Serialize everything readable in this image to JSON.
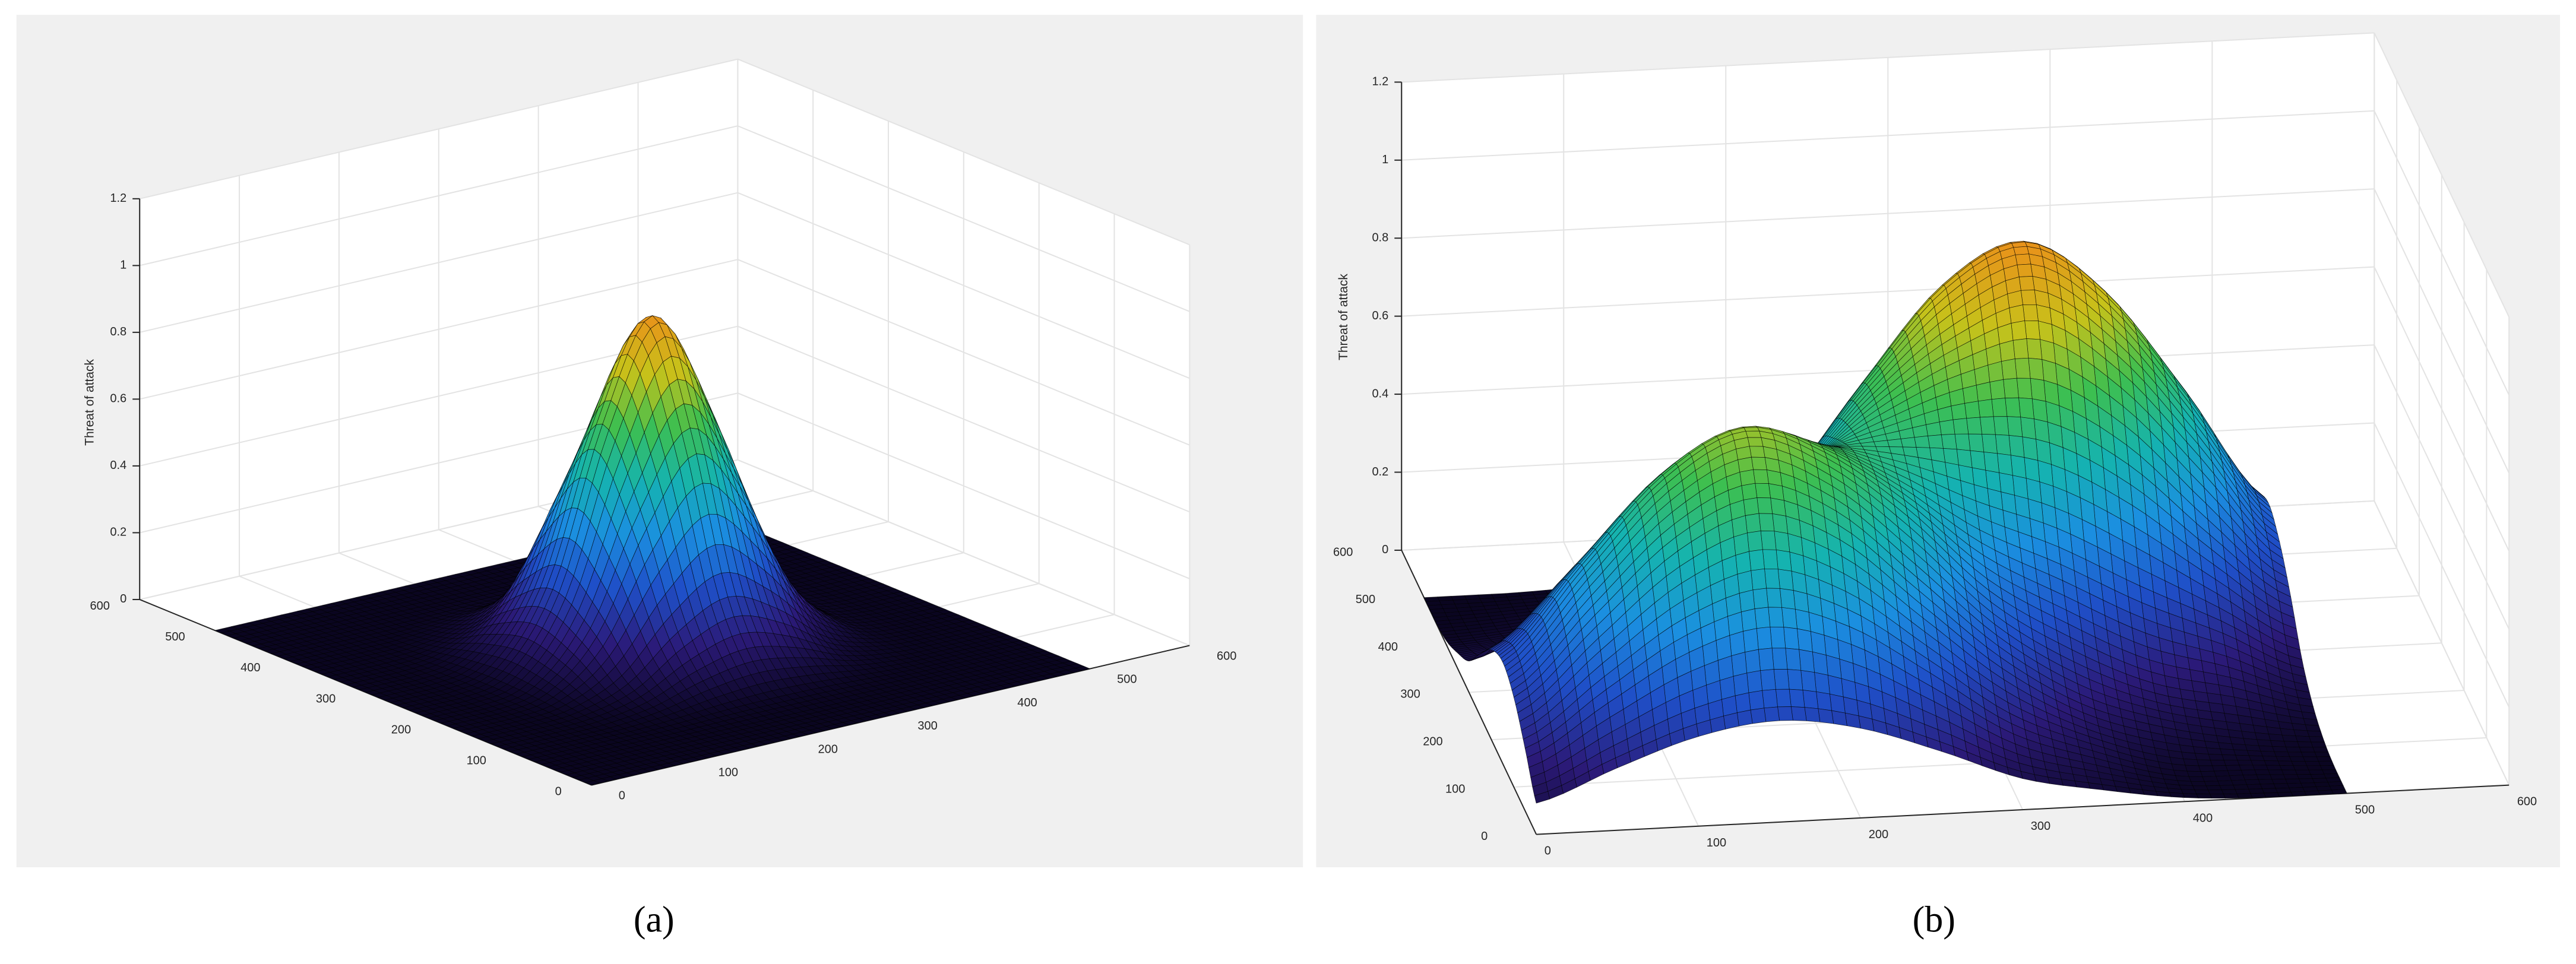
{
  "chart_data": [
    {
      "type": "surface",
      "caption": "(a)",
      "zlabel": "Threat of attack",
      "x": [
        0,
        50,
        100,
        150,
        200,
        250,
        300,
        350,
        400,
        450,
        500
      ],
      "y": [
        0,
        50,
        100,
        150,
        200,
        250,
        300,
        350,
        400,
        450,
        500
      ],
      "z": [
        [
          0,
          0,
          0,
          0,
          0,
          0,
          0,
          0,
          0,
          0,
          0
        ],
        [
          0,
          0,
          0,
          0,
          0,
          0,
          0,
          0,
          0,
          0,
          0
        ],
        [
          0,
          0,
          0,
          0.01,
          0.03,
          0.04,
          0.03,
          0.01,
          0,
          0,
          0
        ],
        [
          0,
          0,
          0.01,
          0.06,
          0.18,
          0.25,
          0.18,
          0.06,
          0.01,
          0,
          0
        ],
        [
          0,
          0,
          0.03,
          0.18,
          0.5,
          0.71,
          0.5,
          0.18,
          0.03,
          0,
          0
        ],
        [
          0,
          0,
          0.04,
          0.25,
          0.71,
          1,
          0.71,
          0.25,
          0.04,
          0,
          0
        ],
        [
          0,
          0,
          0.03,
          0.18,
          0.5,
          0.71,
          0.5,
          0.18,
          0.03,
          0,
          0
        ],
        [
          0,
          0,
          0.01,
          0.06,
          0.18,
          0.25,
          0.18,
          0.06,
          0.01,
          0,
          0
        ],
        [
          0,
          0,
          0,
          0.01,
          0.03,
          0.04,
          0.03,
          0.01,
          0,
          0,
          0
        ],
        [
          0,
          0,
          0,
          0,
          0,
          0,
          0,
          0,
          0,
          0,
          0
        ],
        [
          0,
          0,
          0,
          0,
          0,
          0,
          0,
          0,
          0,
          0,
          0
        ]
      ],
      "xlim": [
        0,
        600
      ],
      "ylim": [
        0,
        600
      ],
      "zlim": [
        0,
        1.2
      ],
      "xticks": [
        0,
        100,
        200,
        300,
        400,
        500,
        600
      ],
      "yticks": [
        0,
        100,
        200,
        300,
        400,
        500,
        600
      ],
      "zticks": [
        0,
        0.2,
        0.4,
        0.6,
        0.8,
        1,
        1.2
      ],
      "grid": true,
      "colormap": [
        "#0a0520",
        "#2b1a78",
        "#1f4fc8",
        "#1b8fe0",
        "#15b3b0",
        "#3dbf50",
        "#c7c21a",
        "#e8931a"
      ]
    },
    {
      "type": "surface",
      "caption": "(b)",
      "zlabel": "Threat of attack",
      "x": [
        0,
        50,
        100,
        150,
        200,
        250,
        300,
        350,
        400,
        450,
        500
      ],
      "y": [
        0,
        50,
        100,
        150,
        200,
        250,
        300,
        350,
        400,
        450,
        500
      ],
      "z": [
        [
          0.08,
          0.16,
          0.23,
          0.26,
          0.23,
          0.16,
          0.08,
          0.04,
          0.01,
          0,
          0
        ],
        [
          0.16,
          0.3,
          0.43,
          0.49,
          0.43,
          0.3,
          0.16,
          0.08,
          0.02,
          0.01,
          0
        ],
        [
          0.23,
          0.43,
          0.62,
          0.71,
          0.63,
          0.45,
          0.27,
          0.14,
          0.07,
          0.03,
          0.01
        ],
        [
          0.26,
          0.49,
          0.71,
          0.82,
          0.74,
          0.58,
          0.38,
          0.25,
          0.15,
          0.1,
          0.04
        ],
        [
          0.23,
          0.43,
          0.63,
          0.74,
          0.72,
          0.63,
          0.51,
          0.42,
          0.31,
          0.21,
          0.1
        ],
        [
          0.16,
          0.31,
          0.45,
          0.58,
          0.63,
          0.67,
          0.7,
          0.68,
          0.56,
          0.37,
          0.2
        ],
        [
          0.08,
          0.17,
          0.27,
          0.38,
          0.51,
          0.7,
          0.85,
          0.92,
          0.78,
          0.54,
          0.28
        ],
        [
          0.04,
          0.08,
          0.14,
          0.25,
          0.42,
          0.68,
          0.92,
          1.02,
          0.88,
          0.61,
          0.32
        ],
        [
          0.01,
          0.03,
          0.07,
          0.15,
          0.31,
          0.56,
          0.78,
          0.88,
          0.77,
          0.54,
          0.28
        ],
        [
          0,
          0.01,
          0.03,
          0.1,
          0.21,
          0.37,
          0.54,
          0.61,
          0.54,
          0.37,
          0.2
        ],
        [
          0,
          0,
          0.01,
          0.04,
          0.1,
          0.2,
          0.28,
          0.32,
          0.28,
          0.2,
          0.1
        ]
      ],
      "xlim": [
        0,
        600
      ],
      "ylim": [
        0,
        600
      ],
      "zlim": [
        0,
        1.2
      ],
      "xticks": [
        0,
        100,
        200,
        300,
        400,
        500,
        600
      ],
      "yticks": [
        0,
        100,
        200,
        300,
        400,
        500,
        600
      ],
      "zticks": [
        0,
        0.2,
        0.4,
        0.6,
        0.8,
        1,
        1.2
      ],
      "grid": true,
      "colormap": [
        "#0a0520",
        "#2b1a78",
        "#1f4fc8",
        "#1b8fe0",
        "#15b3b0",
        "#3dbf50",
        "#c7c21a",
        "#e8931a"
      ]
    }
  ]
}
